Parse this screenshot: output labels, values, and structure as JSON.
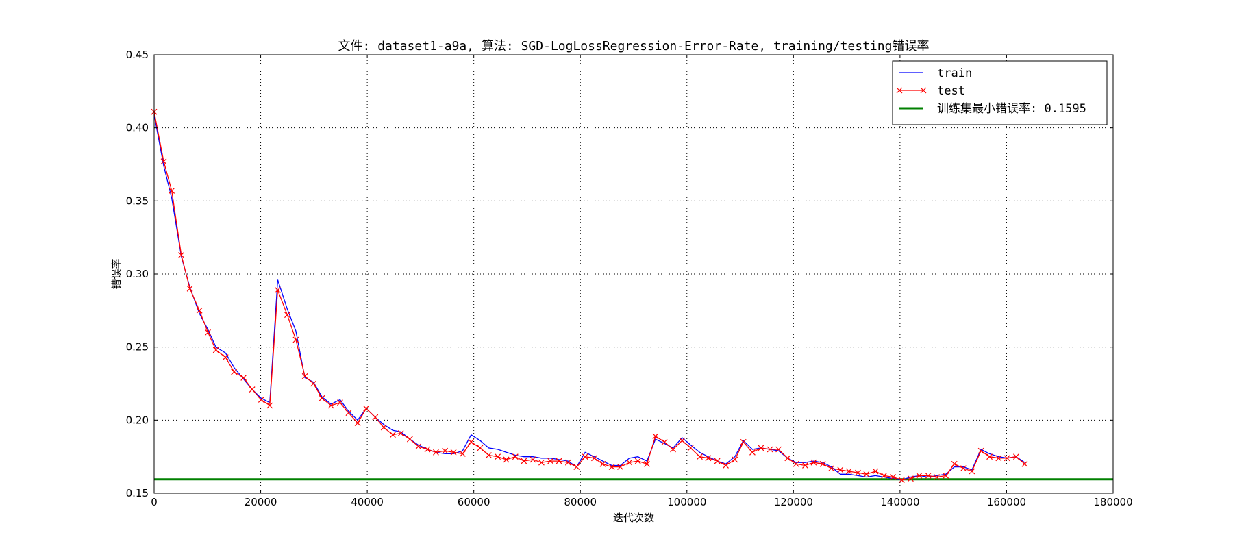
{
  "chart_data": {
    "type": "line",
    "title": "文件: dataset1-a9a, 算法: SGD-LogLossRegression-Error-Rate, training/testing错误率",
    "xlabel": "迭代次数",
    "ylabel": "错误率",
    "xlim": [
      0,
      180000
    ],
    "ylim": [
      0.15,
      0.45
    ],
    "xticks": [
      "0",
      "20000",
      "40000",
      "60000",
      "80000",
      "100000",
      "120000",
      "140000",
      "160000",
      "180000"
    ],
    "yticks": [
      "0.15",
      "0.20",
      "0.25",
      "0.30",
      "0.35",
      "0.40",
      "0.45"
    ],
    "grid": true,
    "legend_position": "top-right",
    "series": [
      {
        "name": "train",
        "color": "#0000ff",
        "marker": "none",
        "x": [
          0,
          1800,
          3300,
          5100,
          6700,
          8500,
          10100,
          11600,
          13400,
          15000,
          16800,
          18400,
          20100,
          21700,
          23200,
          25000,
          26600,
          28300,
          29900,
          31500,
          33200,
          34900,
          36500,
          38200,
          39800,
          41500,
          43100,
          44800,
          46300,
          48000,
          49600,
          51300,
          52900,
          54600,
          56200,
          57900,
          59500,
          61200,
          62800,
          64500,
          66100,
          67800,
          69400,
          71100,
          72700,
          74400,
          76000,
          77700,
          79300,
          80900,
          82600,
          84200,
          85900,
          87500,
          89200,
          90800,
          92500,
          94100,
          95800,
          97400,
          99100,
          100700,
          102400,
          104000,
          105700,
          107300,
          109000,
          110600,
          112300,
          113900,
          115600,
          117200,
          118900,
          120500,
          122200,
          123800,
          125500,
          127100,
          128800,
          130400,
          132100,
          133700,
          135400,
          137000,
          138700,
          140300,
          142000,
          143600,
          145300,
          146900,
          148600,
          150200,
          151900,
          153500,
          155200,
          156800,
          158500,
          160100,
          161800,
          163400
        ],
        "values": [
          0.409,
          0.374,
          0.352,
          0.312,
          0.291,
          0.273,
          0.262,
          0.25,
          0.246,
          0.236,
          0.228,
          0.221,
          0.215,
          0.212,
          0.296,
          0.276,
          0.261,
          0.229,
          0.226,
          0.216,
          0.211,
          0.214,
          0.206,
          0.2,
          0.208,
          0.202,
          0.197,
          0.193,
          0.192,
          0.187,
          0.183,
          0.18,
          0.178,
          0.177,
          0.177,
          0.179,
          0.19,
          0.186,
          0.181,
          0.18,
          0.178,
          0.176,
          0.175,
          0.175,
          0.174,
          0.174,
          0.173,
          0.172,
          0.168,
          0.178,
          0.175,
          0.172,
          0.169,
          0.169,
          0.174,
          0.175,
          0.172,
          0.187,
          0.184,
          0.181,
          0.188,
          0.183,
          0.178,
          0.175,
          0.172,
          0.17,
          0.175,
          0.186,
          0.18,
          0.181,
          0.18,
          0.179,
          0.174,
          0.171,
          0.171,
          0.172,
          0.171,
          0.168,
          0.163,
          0.163,
          0.162,
          0.161,
          0.162,
          0.161,
          0.16,
          0.159,
          0.161,
          0.162,
          0.161,
          0.162,
          0.163,
          0.168,
          0.168,
          0.166,
          0.18,
          0.177,
          0.175,
          0.174,
          0.175,
          0.171
        ]
      },
      {
        "name": "test",
        "color": "#ff0000",
        "marker": "x",
        "x": [
          0,
          1800,
          3300,
          5100,
          6700,
          8500,
          10100,
          11600,
          13400,
          15000,
          16800,
          18400,
          20100,
          21700,
          23200,
          25000,
          26600,
          28300,
          29900,
          31500,
          33200,
          34900,
          36500,
          38200,
          39800,
          41500,
          43100,
          44800,
          46300,
          48000,
          49600,
          51300,
          52900,
          54600,
          56200,
          57900,
          59500,
          61200,
          62800,
          64500,
          66100,
          67800,
          69400,
          71100,
          72700,
          74400,
          76000,
          77700,
          79300,
          80900,
          82600,
          84200,
          85900,
          87500,
          89200,
          90800,
          92500,
          94100,
          95800,
          97400,
          99100,
          100700,
          102400,
          104000,
          105700,
          107300,
          109000,
          110600,
          112300,
          113900,
          115600,
          117200,
          118900,
          120500,
          122200,
          123800,
          125500,
          127100,
          128800,
          130400,
          132100,
          133700,
          135400,
          137000,
          138700,
          140300,
          142000,
          143600,
          145300,
          146900,
          148600,
          150200,
          151900,
          153500,
          155200,
          156800,
          158500,
          160100,
          161800,
          163400
        ],
        "values": [
          0.411,
          0.377,
          0.357,
          0.313,
          0.29,
          0.275,
          0.26,
          0.248,
          0.243,
          0.233,
          0.229,
          0.221,
          0.214,
          0.21,
          0.289,
          0.272,
          0.255,
          0.23,
          0.225,
          0.215,
          0.21,
          0.212,
          0.205,
          0.198,
          0.208,
          0.202,
          0.195,
          0.19,
          0.191,
          0.187,
          0.182,
          0.18,
          0.178,
          0.179,
          0.178,
          0.177,
          0.185,
          0.181,
          0.176,
          0.175,
          0.173,
          0.175,
          0.172,
          0.173,
          0.171,
          0.172,
          0.172,
          0.171,
          0.168,
          0.175,
          0.174,
          0.17,
          0.168,
          0.168,
          0.171,
          0.172,
          0.17,
          0.189,
          0.185,
          0.18,
          0.186,
          0.181,
          0.175,
          0.174,
          0.172,
          0.169,
          0.173,
          0.185,
          0.178,
          0.181,
          0.18,
          0.18,
          0.174,
          0.17,
          0.169,
          0.171,
          0.17,
          0.167,
          0.166,
          0.165,
          0.164,
          0.163,
          0.165,
          0.162,
          0.161,
          0.159,
          0.16,
          0.162,
          0.162,
          0.161,
          0.162,
          0.17,
          0.167,
          0.165,
          0.179,
          0.175,
          0.174,
          0.174,
          0.175,
          0.17
        ]
      },
      {
        "name": "训练集最小错误率: 0.1595",
        "color": "#008000",
        "marker": "none",
        "type": "hline",
        "value": 0.1595
      }
    ]
  }
}
